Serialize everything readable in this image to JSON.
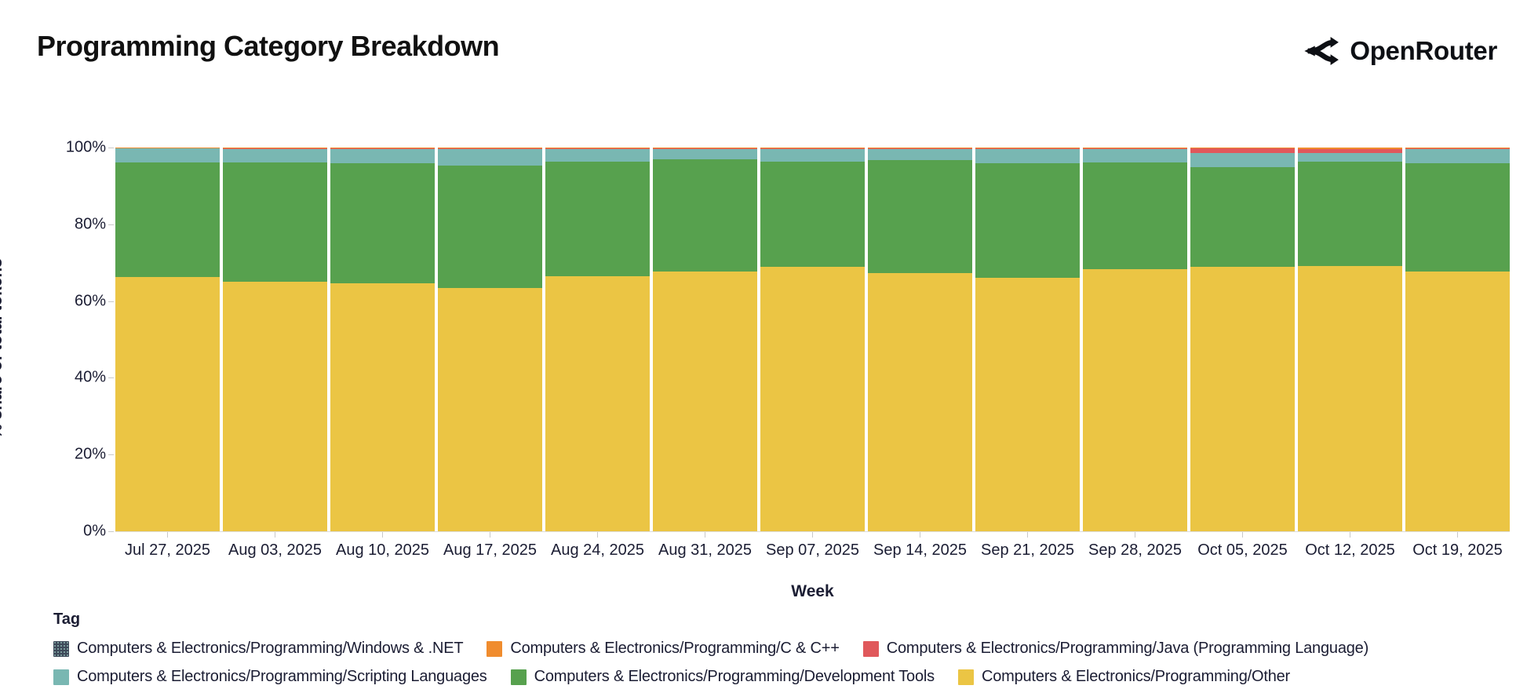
{
  "header": {
    "title": "Programming Category Breakdown",
    "brand": "OpenRouter"
  },
  "chart_data": {
    "type": "bar",
    "stacked": true,
    "normalized_percent": true,
    "title": "Programming Category Breakdown",
    "xlabel": "Week",
    "ylabel": "% share of total tokens",
    "ylim": [
      0,
      100
    ],
    "yticks": [
      0,
      20,
      40,
      60,
      80,
      100
    ],
    "ytick_labels": [
      "0%",
      "20%",
      "40%",
      "60%",
      "80%",
      "100%"
    ],
    "categories": [
      "Jul 27, 2025",
      "Aug 03, 2025",
      "Aug 10, 2025",
      "Aug 17, 2025",
      "Aug 24, 2025",
      "Aug 31, 2025",
      "Sep 07, 2025",
      "Sep 14, 2025",
      "Sep 21, 2025",
      "Sep 28, 2025",
      "Oct 05, 2025",
      "Oct 12, 2025",
      "Oct 19, 2025"
    ],
    "series_defs": {
      "windows_net": {
        "label": "Computers & Electronics/Programming/Windows & .NET",
        "color": "#3e4a5a",
        "pattern": "dots"
      },
      "c_cpp": {
        "label": "Computers & Electronics/Programming/C & C++",
        "color": "#f08c2e",
        "pattern": "solid"
      },
      "java": {
        "label": "Computers & Electronics/Programming/Java (Programming Language)",
        "color": "#e0585b",
        "pattern": "solid"
      },
      "scripting": {
        "label": "Computers & Electronics/Programming/Scripting Languages",
        "color": "#79b7b2",
        "pattern": "solid"
      },
      "dev_tools": {
        "label": "Computers & Electronics/Programming/Development Tools",
        "color": "#57a14e",
        "pattern": "solid"
      },
      "other": {
        "label": "Computers & Electronics/Programming/Other",
        "color": "#ebc544",
        "pattern": "solid"
      }
    },
    "stack_order_bottom_to_top": [
      "other",
      "dev_tools",
      "scripting",
      "java",
      "c_cpp",
      "windows_net"
    ],
    "values": {
      "other": [
        66.2,
        65.0,
        64.7,
        63.3,
        66.4,
        67.7,
        68.9,
        67.2,
        66.1,
        68.2,
        69.0,
        69.2,
        67.7
      ],
      "dev_tools": [
        30.0,
        31.2,
        31.2,
        31.9,
        29.9,
        29.2,
        27.5,
        29.5,
        29.8,
        28.0,
        25.8,
        27.1,
        28.3
      ],
      "scripting": [
        3.6,
        3.4,
        3.7,
        4.4,
        3.3,
        2.7,
        3.2,
        2.9,
        3.7,
        3.4,
        3.75,
        2.25,
        3.6
      ],
      "java": [
        0.05,
        0.1,
        0.1,
        0.1,
        0.1,
        0.1,
        0.1,
        0.1,
        0.1,
        0.1,
        1.2,
        1.1,
        0.1
      ],
      "c_cpp": [
        0.1,
        0.25,
        0.25,
        0.25,
        0.25,
        0.25,
        0.25,
        0.25,
        0.25,
        0.25,
        0.2,
        0.3,
        0.25
      ],
      "windows_net": [
        0.05,
        0.05,
        0.05,
        0.05,
        0.05,
        0.05,
        0.05,
        0.05,
        0.05,
        0.05,
        0.05,
        0.05,
        0.05
      ]
    },
    "legend": {
      "title": "Tag",
      "position": "bottom",
      "rows": [
        [
          "windows_net",
          "c_cpp",
          "java"
        ],
        [
          "scripting",
          "dev_tools",
          "other"
        ]
      ]
    },
    "colors": {
      "text": "#1b1d33",
      "tick": "#c9c9c9",
      "title": "#111111"
    }
  }
}
